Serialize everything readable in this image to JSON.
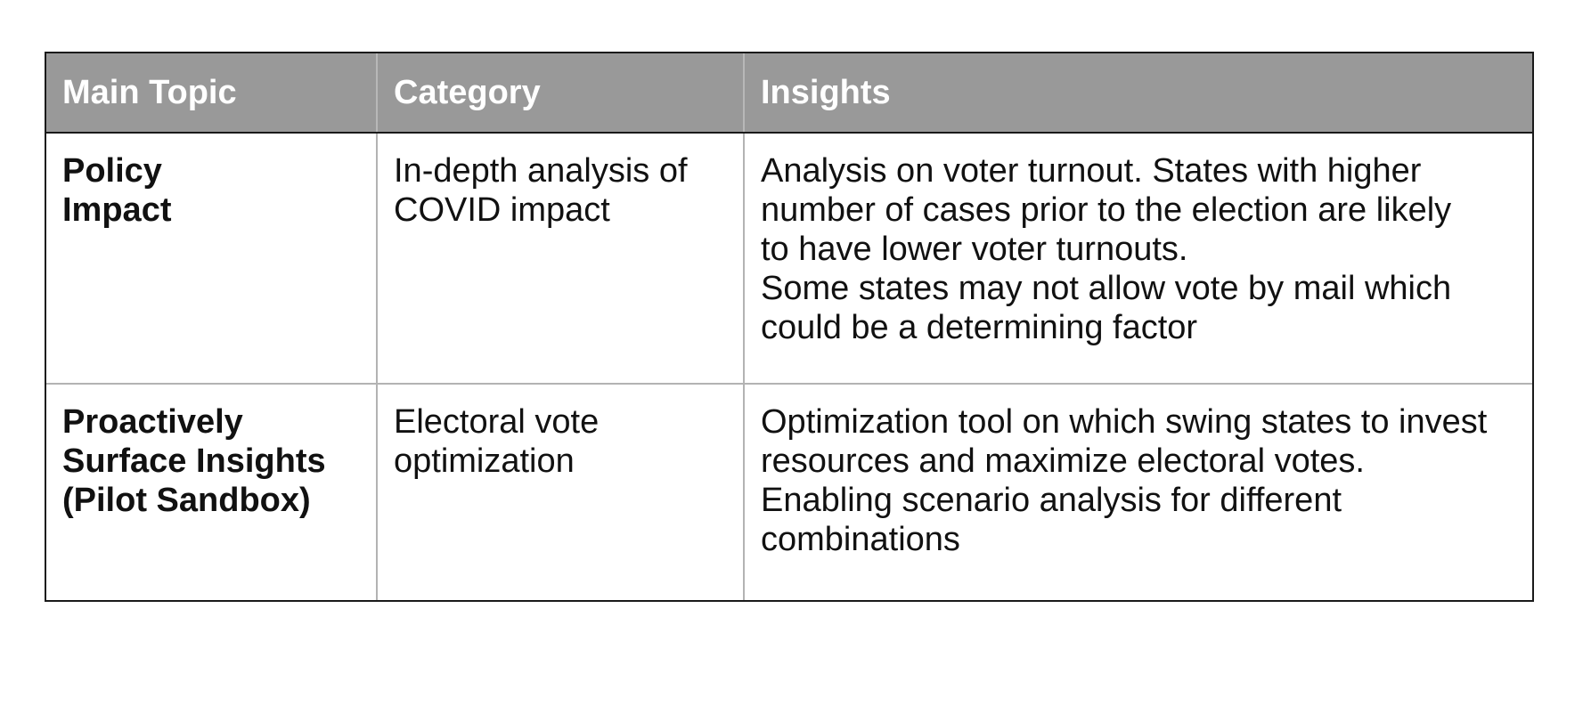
{
  "table": {
    "headers": [
      "Main Topic",
      "Category",
      "Insights"
    ],
    "rows": [
      {
        "main_topic": "Policy\nImpact",
        "category": "In-depth analysis of\nCOVID impact",
        "insights": "Analysis on voter turnout. States with higher\nnumber of cases prior to the election are likely\nto have lower voter turnouts.\nSome states may not allow vote by mail which\ncould be a determining factor"
      },
      {
        "main_topic": "Proactively\nSurface Insights\n(Pilot Sandbox)",
        "category": "Electoral vote\noptimization",
        "insights": "Optimization tool on which swing states to invest\nresources and maximize electoral votes.\nEnabling scenario analysis for different\ncombinations"
      }
    ]
  }
}
